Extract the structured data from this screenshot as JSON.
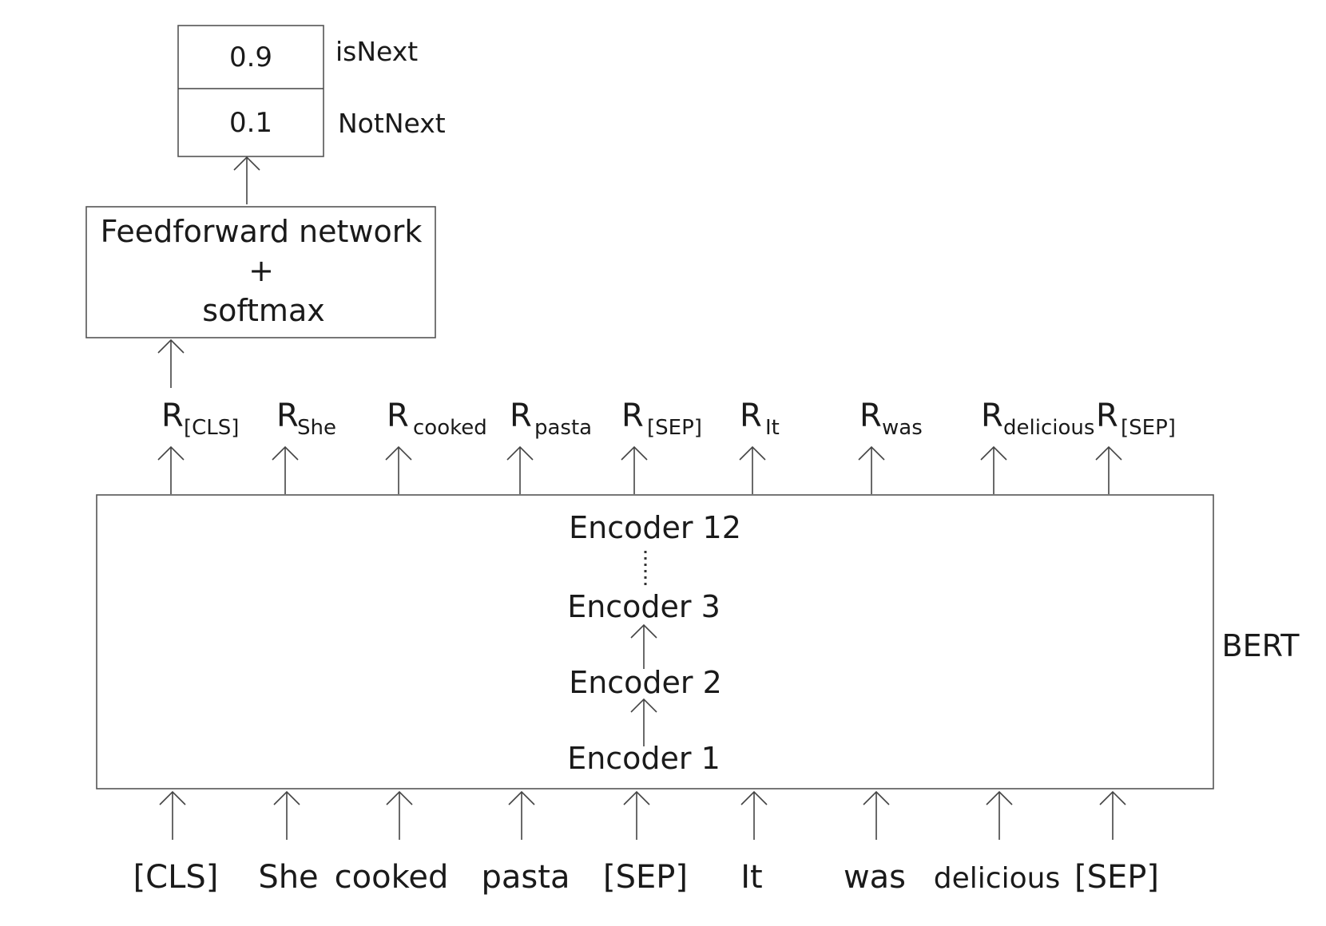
{
  "output": {
    "probabilities": [
      {
        "value": "0.9",
        "label": "isNext"
      },
      {
        "value": "0.1",
        "label": "NotNext"
      }
    ]
  },
  "ffn": {
    "line1": "Feedforward network",
    "line2": "+",
    "line3": "softmax"
  },
  "representations": [
    {
      "base": "R",
      "sub": "[CLS]"
    },
    {
      "base": "R",
      "sub": "She"
    },
    {
      "base": "R",
      "sub": "cooked"
    },
    {
      "base": "R",
      "sub": "pasta"
    },
    {
      "base": "R",
      "sub": "[SEP]"
    },
    {
      "base": "R",
      "sub": "It"
    },
    {
      "base": "R",
      "sub": "was"
    },
    {
      "base": "R",
      "sub": "delicious"
    },
    {
      "base": "R",
      "sub": "[SEP]"
    }
  ],
  "encoders": {
    "top": "Encoder 12",
    "e3": "Encoder 3",
    "e2": "Encoder 2",
    "e1": "Encoder 1"
  },
  "model_label": "BERT",
  "tokens": [
    "[CLS]",
    "She",
    "cooked",
    "pasta",
    "[SEP]",
    "It",
    "was",
    "delicious",
    "[SEP]"
  ]
}
